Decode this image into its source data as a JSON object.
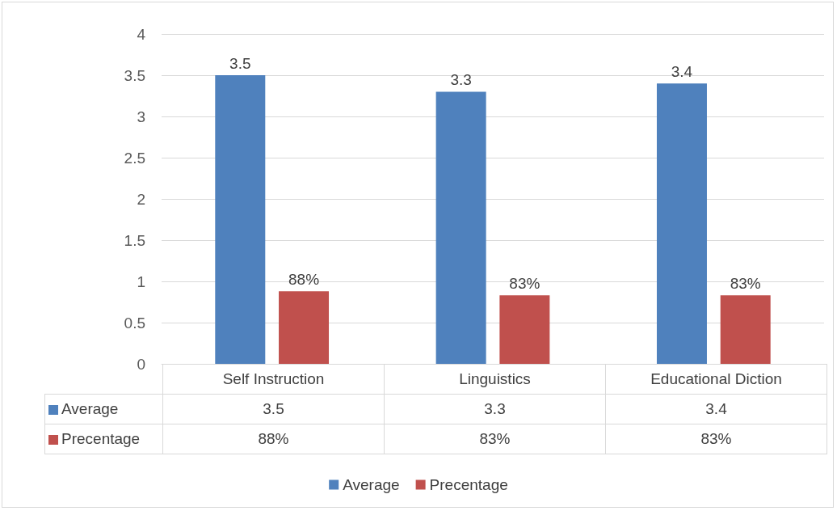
{
  "chart_data": {
    "type": "bar",
    "categories": [
      "Self Instruction",
      "Linguistics",
      "Educational Diction"
    ],
    "series": [
      {
        "name": "Average",
        "color": "#4f81bd",
        "values": [
          3.5,
          3.3,
          3.4
        ],
        "value_labels": [
          "3.5",
          "3.3",
          "3.4"
        ]
      },
      {
        "name": "Precentage",
        "color": "#c0504d",
        "values": [
          0.88,
          0.83,
          0.83
        ],
        "value_labels": [
          "88%",
          "83%",
          "83%"
        ]
      }
    ],
    "ylim": [
      0,
      4
    ],
    "yticks": [
      0,
      0.5,
      1,
      1.5,
      2,
      2.5,
      3,
      3.5,
      4
    ],
    "grid": "y",
    "legend": "bottom"
  }
}
